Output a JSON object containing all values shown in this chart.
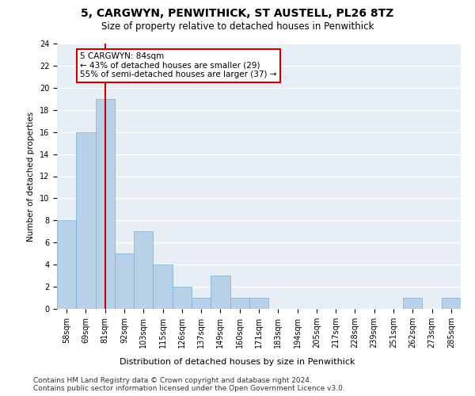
{
  "title": "5, CARGWYN, PENWITHICK, ST AUSTELL, PL26 8TZ",
  "subtitle": "Size of property relative to detached houses in Penwithick",
  "xlabel": "Distribution of detached houses by size in Penwithick",
  "ylabel": "Number of detached properties",
  "bar_color": "#b8d0e8",
  "bar_edge_color": "#7aafd4",
  "background_color": "#e8eef5",
  "grid_color": "#ffffff",
  "annotation_line1": "5 CARGWYN: 84sqm",
  "annotation_line2": "← 43% of detached houses are smaller (29)",
  "annotation_line3": "55% of semi-detached houses are larger (37) →",
  "annotation_box_color": "#cc0000",
  "marker_line_color": "#cc0000",
  "categories": [
    "58sqm",
    "69sqm",
    "81sqm",
    "92sqm",
    "103sqm",
    "115sqm",
    "126sqm",
    "137sqm",
    "149sqm",
    "160sqm",
    "171sqm",
    "183sqm",
    "194sqm",
    "205sqm",
    "217sqm",
    "228sqm",
    "239sqm",
    "251sqm",
    "262sqm",
    "273sqm",
    "285sqm"
  ],
  "values": [
    8,
    16,
    19,
    5,
    7,
    4,
    2,
    1,
    3,
    1,
    1,
    0,
    0,
    0,
    0,
    0,
    0,
    0,
    1,
    0,
    1
  ],
  "ylim": [
    0,
    24
  ],
  "yticks": [
    0,
    2,
    4,
    6,
    8,
    10,
    12,
    14,
    16,
    18,
    20,
    22,
    24
  ],
  "marker_bar_index": 2,
  "footer": "Contains HM Land Registry data © Crown copyright and database right 2024.\nContains public sector information licensed under the Open Government Licence v3.0.",
  "footer_fontsize": 6.5,
  "title_fontsize": 10,
  "subtitle_fontsize": 8.5,
  "xlabel_fontsize": 8,
  "ylabel_fontsize": 7.5,
  "tick_fontsize": 7,
  "annot_fontsize": 7.5
}
